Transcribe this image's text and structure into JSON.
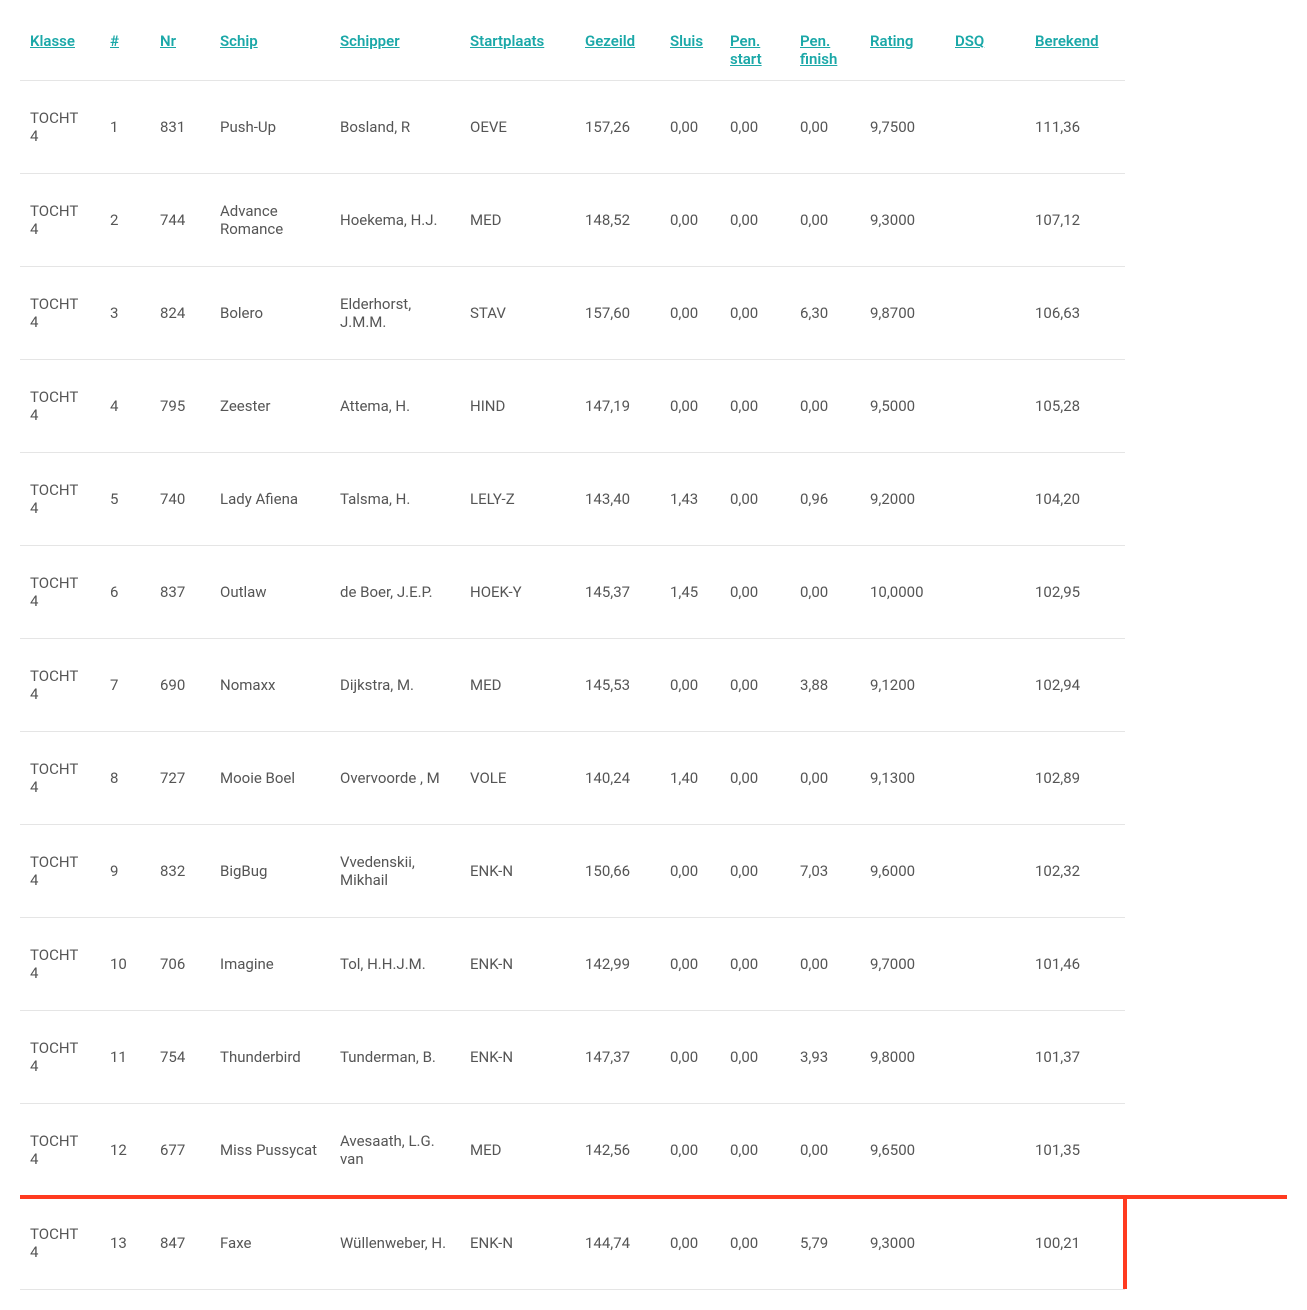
{
  "table": {
    "columns": [
      {
        "key": "klasse",
        "label": "Klasse"
      },
      {
        "key": "hash",
        "label": "#"
      },
      {
        "key": "nr",
        "label": "Nr"
      },
      {
        "key": "schip",
        "label": "Schip"
      },
      {
        "key": "schipper",
        "label": "Schipper"
      },
      {
        "key": "startplaats",
        "label": "Startplaats"
      },
      {
        "key": "gezeild",
        "label": "Gezeild"
      },
      {
        "key": "sluis",
        "label": "Sluis"
      },
      {
        "key": "pen_start",
        "label": "Pen. start"
      },
      {
        "key": "pen_finish",
        "label": "Pen. finish"
      },
      {
        "key": "rating",
        "label": "Rating"
      },
      {
        "key": "dsq",
        "label": "DSQ"
      },
      {
        "key": "berekend",
        "label": "Berekend"
      }
    ],
    "rows": [
      {
        "klasse": "TOCHT 4",
        "hash": "1",
        "nr": "831",
        "schip": "Push-Up",
        "schipper": "Bosland, R",
        "startplaats": "OEVE",
        "gezeild": "157,26",
        "sluis": "0,00",
        "pen_start": "0,00",
        "pen_finish": "0,00",
        "rating": "9,7500",
        "dsq": "",
        "berekend": "111,36",
        "red_line": false,
        "red_right": false
      },
      {
        "klasse": "TOCHT 4",
        "hash": "2",
        "nr": "744",
        "schip": "Advance Romance",
        "schipper": "Hoekema, H.J.",
        "startplaats": "MED",
        "gezeild": "148,52",
        "sluis": "0,00",
        "pen_start": "0,00",
        "pen_finish": "0,00",
        "rating": "9,3000",
        "dsq": "",
        "berekend": "107,12",
        "red_line": false,
        "red_right": false
      },
      {
        "klasse": "TOCHT 4",
        "hash": "3",
        "nr": "824",
        "schip": "Bolero",
        "schipper": "Elderhorst, J.M.M.",
        "startplaats": "STAV",
        "gezeild": "157,60",
        "sluis": "0,00",
        "pen_start": "0,00",
        "pen_finish": "6,30",
        "rating": "9,8700",
        "dsq": "",
        "berekend": "106,63",
        "red_line": false,
        "red_right": false
      },
      {
        "klasse": "TOCHT 4",
        "hash": "4",
        "nr": "795",
        "schip": "Zeester",
        "schipper": "Attema, H.",
        "startplaats": "HIND",
        "gezeild": "147,19",
        "sluis": "0,00",
        "pen_start": "0,00",
        "pen_finish": "0,00",
        "rating": "9,5000",
        "dsq": "",
        "berekend": "105,28",
        "red_line": false,
        "red_right": false
      },
      {
        "klasse": "TOCHT 4",
        "hash": "5",
        "nr": "740",
        "schip": "Lady Afiena",
        "schipper": "Talsma, H.",
        "startplaats": "LELY-Z",
        "gezeild": "143,40",
        "sluis": "1,43",
        "pen_start": "0,00",
        "pen_finish": "0,96",
        "rating": "9,2000",
        "dsq": "",
        "berekend": "104,20",
        "red_line": false,
        "red_right": false
      },
      {
        "klasse": "TOCHT 4",
        "hash": "6",
        "nr": "837",
        "schip": "Outlaw",
        "schipper": "de Boer, J.E.P.",
        "startplaats": "HOEK-Y",
        "gezeild": "145,37",
        "sluis": "1,45",
        "pen_start": "0,00",
        "pen_finish": "0,00",
        "rating": "10,0000",
        "dsq": "",
        "berekend": "102,95",
        "red_line": false,
        "red_right": false
      },
      {
        "klasse": "TOCHT 4",
        "hash": "7",
        "nr": "690",
        "schip": "Nomaxx",
        "schipper": "Dijkstra, M.",
        "startplaats": "MED",
        "gezeild": "145,53",
        "sluis": "0,00",
        "pen_start": "0,00",
        "pen_finish": "3,88",
        "rating": "9,1200",
        "dsq": "",
        "berekend": "102,94",
        "red_line": false,
        "red_right": false
      },
      {
        "klasse": "TOCHT 4",
        "hash": "8",
        "nr": "727",
        "schip": "Mooie Boel",
        "schipper": "Overvoorde , M",
        "startplaats": "VOLE",
        "gezeild": "140,24",
        "sluis": "1,40",
        "pen_start": "0,00",
        "pen_finish": "0,00",
        "rating": "9,1300",
        "dsq": "",
        "berekend": "102,89",
        "red_line": false,
        "red_right": false
      },
      {
        "klasse": "TOCHT 4",
        "hash": "9",
        "nr": "832",
        "schip": "BigBug",
        "schipper": "Vvedenskii, Mikhail",
        "startplaats": "ENK-N",
        "gezeild": "150,66",
        "sluis": "0,00",
        "pen_start": "0,00",
        "pen_finish": "7,03",
        "rating": "9,6000",
        "dsq": "",
        "berekend": "102,32",
        "red_line": false,
        "red_right": false
      },
      {
        "klasse": "TOCHT 4",
        "hash": "10",
        "nr": "706",
        "schip": "Imagine",
        "schipper": "Tol, H.H.J.M.",
        "startplaats": "ENK-N",
        "gezeild": "142,99",
        "sluis": "0,00",
        "pen_start": "0,00",
        "pen_finish": "0,00",
        "rating": "9,7000",
        "dsq": "",
        "berekend": "101,46",
        "red_line": false,
        "red_right": false
      },
      {
        "klasse": "TOCHT 4",
        "hash": "11",
        "nr": "754",
        "schip": "Thunderbird",
        "schipper": "Tunderman, B.",
        "startplaats": "ENK-N",
        "gezeild": "147,37",
        "sluis": "0,00",
        "pen_start": "0,00",
        "pen_finish": "3,93",
        "rating": "9,8000",
        "dsq": "",
        "berekend": "101,37",
        "red_line": false,
        "red_right": false
      },
      {
        "klasse": "TOCHT 4",
        "hash": "12",
        "nr": "677",
        "schip": "Miss Pussycat",
        "schipper": "Avesaath, L.G. van",
        "startplaats": "MED",
        "gezeild": "142,56",
        "sluis": "0,00",
        "pen_start": "0,00",
        "pen_finish": "0,00",
        "rating": "9,6500",
        "dsq": "",
        "berekend": "101,35",
        "red_line": true,
        "red_right": false
      },
      {
        "klasse": "TOCHT 4",
        "hash": "13",
        "nr": "847",
        "schip": "Faxe",
        "schipper": "Wüllenweber, H.",
        "startplaats": "ENK-N",
        "gezeild": "144,74",
        "sluis": "0,00",
        "pen_start": "0,00",
        "pen_finish": "5,79",
        "rating": "9,3000",
        "dsq": "",
        "berekend": "100,21",
        "red_line": false,
        "red_right": true
      }
    ],
    "header_link_color": "#1ba8a8",
    "text_color": "#555555",
    "border_color": "#e5e5e5",
    "red_highlight_color": "#ff3a1f",
    "background_color": "#ffffff"
  }
}
